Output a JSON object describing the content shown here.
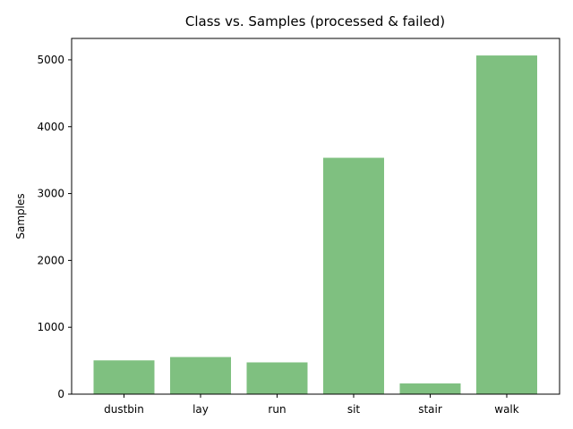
{
  "chart_data": {
    "type": "bar",
    "title": "Class vs. Samples (processed & failed)",
    "xlabel": "",
    "ylabel": "Samples",
    "categories": [
      "dustbin",
      "lay",
      "run",
      "sit",
      "stair",
      "walk"
    ],
    "values": [
      505,
      555,
      475,
      3535,
      160,
      5065
    ],
    "ylim": [
      0,
      5320
    ],
    "yticks": [
      0,
      1000,
      2000,
      3000,
      4000,
      5000
    ],
    "bar_color": "#7fc080",
    "grid": false,
    "legend": "none"
  }
}
